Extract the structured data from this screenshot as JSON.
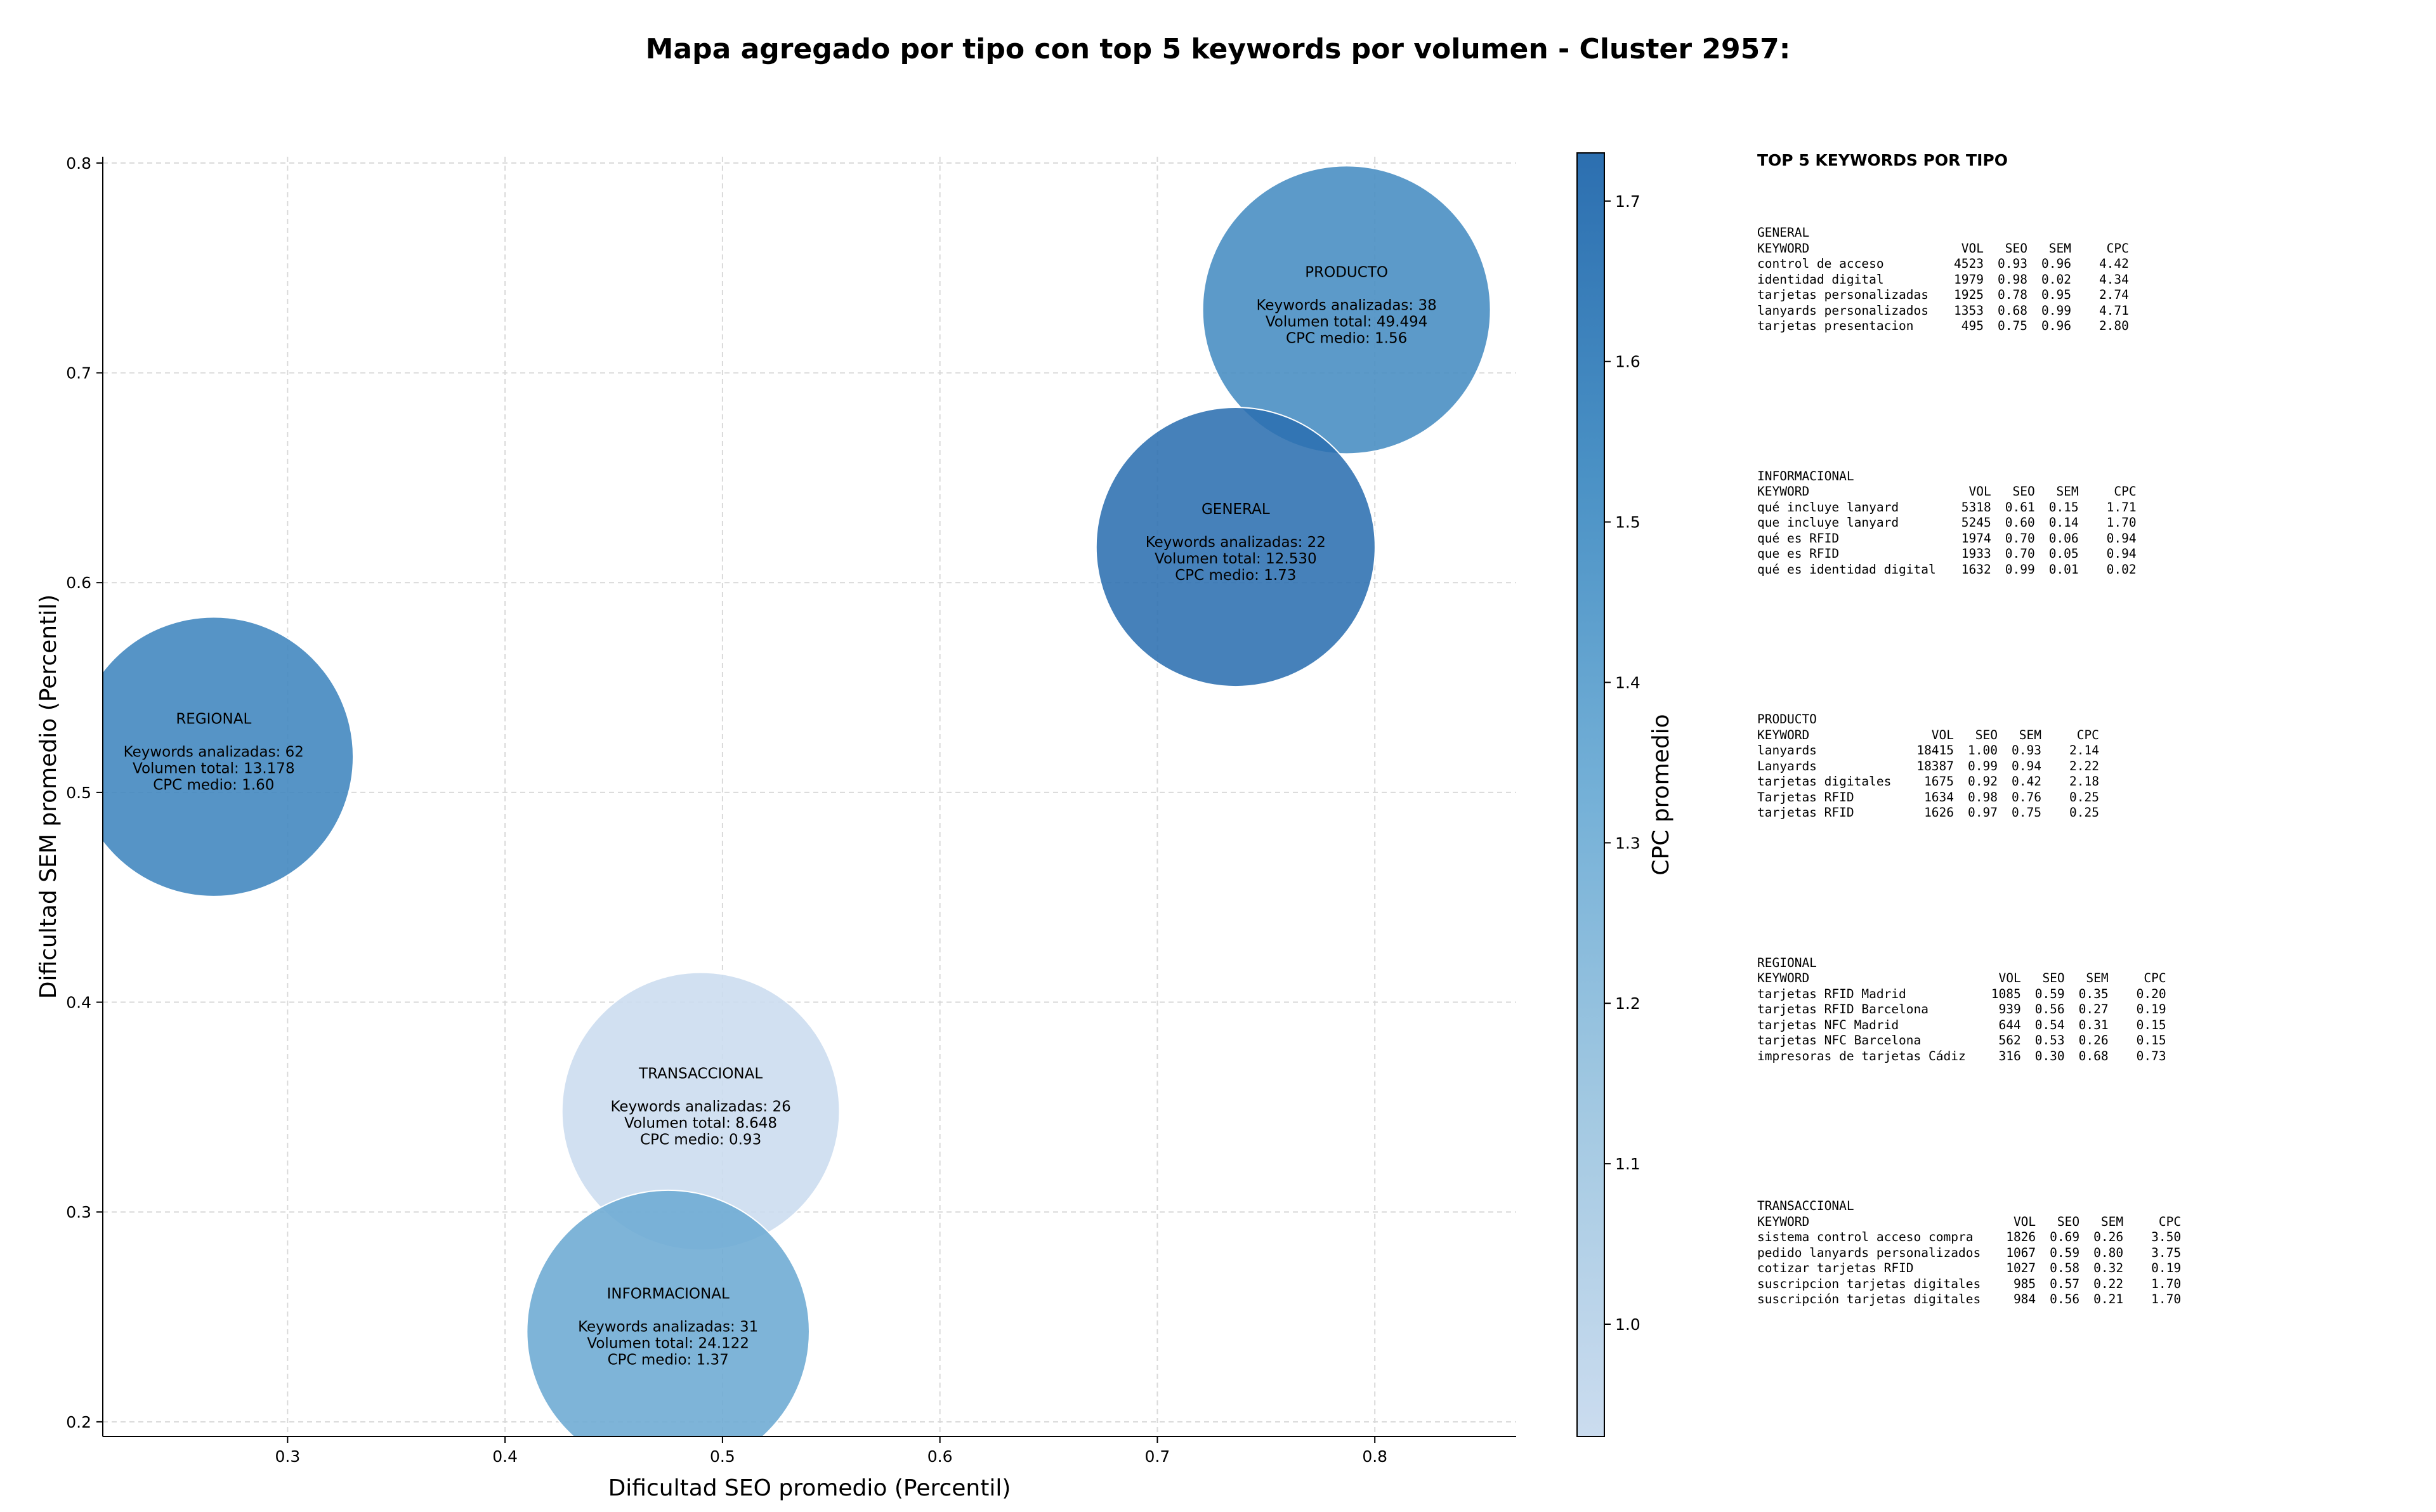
{
  "chart_data": {
    "type": "scatter",
    "title": "Mapa agregado por tipo con top 5 keywords por volumen - Cluster 2957:",
    "xlabel": "Dificultad SEO promedio (Percentil)",
    "ylabel": "Dificultad SEM promedio (Percentil)",
    "xlim": [
      0.215,
      0.865
    ],
    "ylim": [
      0.193,
      0.803
    ],
    "xticks": [
      "0.3",
      "0.4",
      "0.5",
      "0.6",
      "0.7",
      "0.8"
    ],
    "yticks": [
      "0.2",
      "0.3",
      "0.4",
      "0.5",
      "0.6",
      "0.7",
      "0.8"
    ],
    "grid": true,
    "colorbar": {
      "label": "CPC promedio",
      "range": [
        0.93,
        1.73
      ],
      "ticks": [
        "1.0",
        "1.1",
        "1.2",
        "1.3",
        "1.4",
        "1.5",
        "1.6",
        "1.7"
      ],
      "colormap": "Blues"
    },
    "points": [
      {
        "name": "PRODUCTO",
        "x": 0.787,
        "y": 0.73,
        "volume": 49494,
        "keywords": 38,
        "cpc": 1.56,
        "lines": [
          "Keywords analizadas: 38",
          "Volumen total: 49.494",
          "CPC medio: 1.56"
        ]
      },
      {
        "name": "GENERAL",
        "x": 0.736,
        "y": 0.617,
        "volume": 12530,
        "keywords": 22,
        "cpc": 1.73,
        "lines": [
          "Keywords analizadas: 22",
          "Volumen total: 12.530",
          "CPC medio: 1.73"
        ]
      },
      {
        "name": "REGIONAL",
        "x": 0.266,
        "y": 0.517,
        "volume": 13178,
        "keywords": 62,
        "cpc": 1.6,
        "lines": [
          "Keywords analizadas: 62",
          "Volumen total: 13.178",
          "CPC medio: 1.60"
        ]
      },
      {
        "name": "TRANSACCIONAL",
        "x": 0.49,
        "y": 0.348,
        "volume": 8648,
        "keywords": 26,
        "cpc": 0.93,
        "lines": [
          "Keywords analizadas: 26",
          "Volumen total: 8.648",
          "CPC medio: 0.93"
        ]
      },
      {
        "name": "INFORMACIONAL",
        "x": 0.475,
        "y": 0.243,
        "volume": 24122,
        "keywords": 31,
        "cpc": 1.37,
        "lines": [
          "Keywords analizadas: 31",
          "Volumen total: 24.122",
          "CPC medio: 1.37"
        ]
      }
    ]
  },
  "side_panel": {
    "title": "TOP 5 KEYWORDS POR TIPO",
    "columns": [
      "KEYWORD",
      "VOL",
      "SEO",
      "SEM",
      "CPC"
    ],
    "groups": [
      {
        "name": "GENERAL",
        "rows": [
          [
            "control de acceso",
            "4523",
            "0.93",
            "0.96",
            "4.42"
          ],
          [
            "identidad digital",
            "1979",
            "0.98",
            "0.02",
            "4.34"
          ],
          [
            "tarjetas personalizadas",
            "1925",
            "0.78",
            "0.95",
            "2.74"
          ],
          [
            "lanyards personalizados",
            "1353",
            "0.68",
            "0.99",
            "4.71"
          ],
          [
            "tarjetas presentacion",
            "495",
            "0.75",
            "0.96",
            "2.80"
          ]
        ]
      },
      {
        "name": "INFORMACIONAL",
        "rows": [
          [
            "qué incluye lanyard",
            "5318",
            "0.61",
            "0.15",
            "1.71"
          ],
          [
            "que incluye lanyard",
            "5245",
            "0.60",
            "0.14",
            "1.70"
          ],
          [
            "qué es RFID",
            "1974",
            "0.70",
            "0.06",
            "0.94"
          ],
          [
            "que es RFID",
            "1933",
            "0.70",
            "0.05",
            "0.94"
          ],
          [
            "qué es identidad digital",
            "1632",
            "0.99",
            "0.01",
            "0.02"
          ]
        ]
      },
      {
        "name": "PRODUCTO",
        "rows": [
          [
            "lanyards",
            "18415",
            "1.00",
            "0.93",
            "2.14"
          ],
          [
            "Lanyards",
            "18387",
            "0.99",
            "0.94",
            "2.22"
          ],
          [
            "tarjetas digitales",
            "1675",
            "0.92",
            "0.42",
            "2.18"
          ],
          [
            "Tarjetas RFID",
            "1634",
            "0.98",
            "0.76",
            "0.25"
          ],
          [
            "tarjetas RFID",
            "1626",
            "0.97",
            "0.75",
            "0.25"
          ]
        ]
      },
      {
        "name": "REGIONAL",
        "rows": [
          [
            "tarjetas RFID Madrid",
            "1085",
            "0.59",
            "0.35",
            "0.20"
          ],
          [
            "tarjetas RFID Barcelona",
            "939",
            "0.56",
            "0.27",
            "0.19"
          ],
          [
            "tarjetas NFC Madrid",
            "644",
            "0.54",
            "0.31",
            "0.15"
          ],
          [
            "tarjetas NFC Barcelona",
            "562",
            "0.53",
            "0.26",
            "0.15"
          ],
          [
            "impresoras de tarjetas Cádiz",
            "316",
            "0.30",
            "0.68",
            "0.73"
          ]
        ]
      },
      {
        "name": "TRANSACCIONAL",
        "rows": [
          [
            "sistema control acceso compra",
            "1826",
            "0.69",
            "0.26",
            "3.50"
          ],
          [
            "pedido lanyards personalizados",
            "1067",
            "0.59",
            "0.80",
            "3.75"
          ],
          [
            "cotizar tarjetas RFID",
            "1027",
            "0.58",
            "0.32",
            "0.19"
          ],
          [
            "suscripcion tarjetas digitales",
            "985",
            "0.57",
            "0.22",
            "1.70"
          ],
          [
            "suscripción tarjetas digitales",
            "984",
            "0.56",
            "0.21",
            "1.70"
          ]
        ]
      }
    ]
  }
}
